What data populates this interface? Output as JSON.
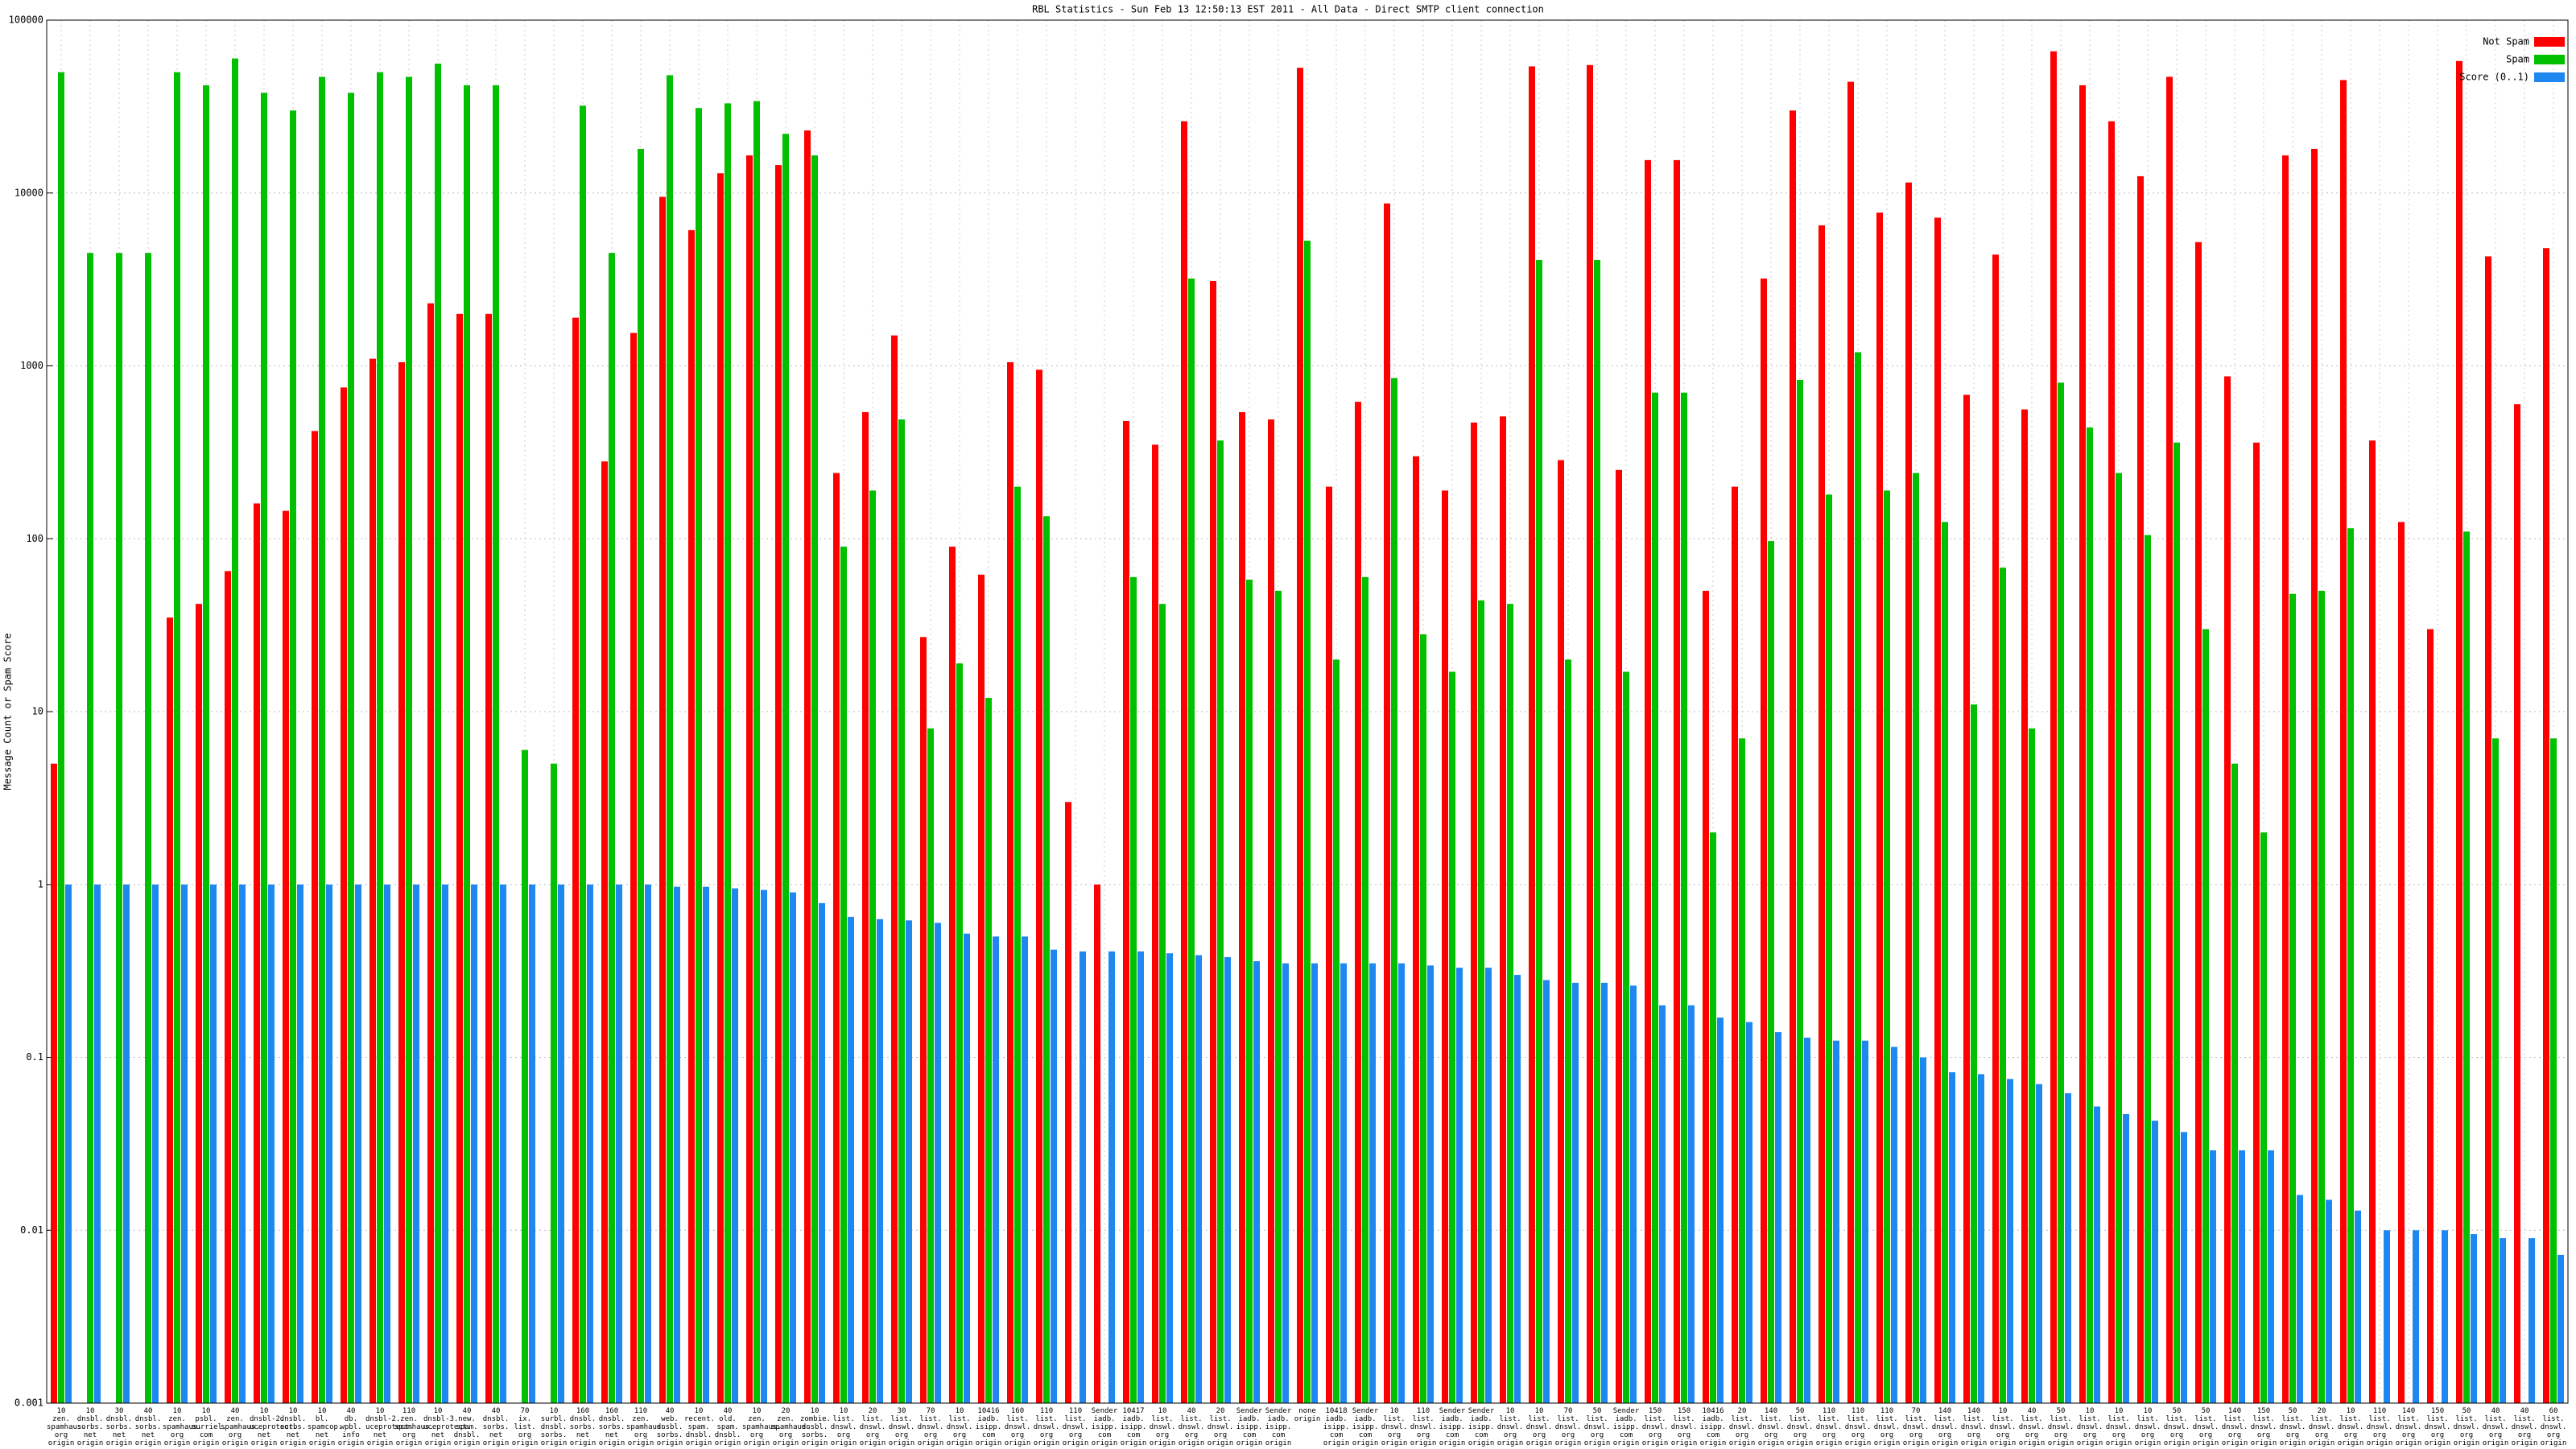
{
  "chart_data": {
    "type": "bar",
    "title": "RBL Statistics - Sun Feb 13 12:50:13 EST 2011 - All Data - Direct SMTP client connection",
    "y_label": "Message Count or Spam Score",
    "log_y": true,
    "grid": true,
    "legend": "upper right",
    "ylim": [
      0.001,
      100000
    ],
    "yticks": [
      0.001,
      0.01,
      0.1,
      1,
      10,
      100,
      1000,
      10000,
      100000
    ],
    "categories": [
      "10\nzen.\nspamhaus.\norg\norigin",
      "10\ndnsbl.\nsorbs.\nnet\norigin",
      "30\ndnsbl.\nsorbs.\nnet\norigin",
      "40\ndnsbl.\nsorbs.\nnet\norigin",
      "10\nzen.\nspamhaus.\norg\norigin",
      "10\npsbl.\nsurriel.\ncom\norigin",
      "40\nzen.\nspamhaus.\norg\norigin",
      "10\ndnsbl-2.\nuceprotect.\nnet\norigin",
      "10\ndnsbl.\nsorbs.\nnet\norigin",
      "10\nbl.\nspamcop.\nnet\norigin",
      "40\ndb.\nwpbl.\ninfo\norigin",
      "10\ndnsbl-2.\nuceprotect.\nnet\norigin",
      "110\nzen.\nspamhaus.\norg\norigin",
      "10\ndnsbl-3.\nuceprotect.\nnet\norigin",
      "40\nnew.\nspam.\ndnsbl.\norigin",
      "40\ndnsbl.\nsorbs.\nnet\norigin",
      "70\nix.\nlist.\norg\norigin",
      "10\nsurbl.\ndnsbl.\nsorbs.\norigin",
      "160\ndnsbl.\nsorbs.\nnet\norigin",
      "160\ndnsbl.\nsorbs.\nnet\norigin",
      "110\nzen.\nspamhaus.\norg\norigin",
      "40\nweb.\ndnsbl.\nsorbs.\norigin",
      "10\nrecent.\nspam.\ndnsbl.\norigin",
      "40\nold.\nspam.\ndnsbl.\norigin",
      "10\nzen.\nspamhaus.\norg\norigin",
      "20\nzen.\nspamhaus.\norg\norigin",
      "10\nzombie.\ndnsbl.\nsorbs.\norigin",
      "10\nlist.\ndnswl.\norg\norigin",
      "20\nlist.\ndnswl.\norg\norigin",
      "30\nlist.\ndnswl.\norg\norigin",
      "70\nlist.\ndnswl.\norg\norigin",
      "10\nlist.\ndnswl.\norg\norigin",
      "10416\niadb.\nisipp.\ncom\norigin",
      "160\nlist.\ndnswl.\norg\norigin",
      "110\nlist.\ndnswl.\norg\norigin",
      "110\nlist.\ndnswl.\norg\norigin",
      "Sender\niadb.\nisipp.\ncom\norigin",
      "10417\niadb.\nisipp.\ncom\norigin",
      "10\nlist.\ndnswl.\norg\norigin",
      "40\nlist.\ndnswl.\norg\norigin",
      "20\nlist.\ndnswl.\norg\norigin",
      "Sender\niadb.\nisipp.\ncom\norigin",
      "Sender\niadb.\nisipp.\ncom\norigin",
      "none\norigin",
      "10418\niadb.\nisipp.\ncom\norigin",
      "Sender\niadb.\nisipp.\ncom\norigin",
      "10\nlist.\ndnswl.\norg\norigin",
      "110\nlist.\ndnswl.\norg\norigin",
      "Sender\niadb.\nisipp.\ncom\norigin",
      "Sender\niadb.\nisipp.\ncom\norigin",
      "10\nlist.\ndnswl.\norg\norigin",
      "10\nlist.\ndnswl.\norg\norigin",
      "70\nlist.\ndnswl.\norg\norigin",
      "50\nlist.\ndnswl.\norg\norigin",
      "Sender\niadb.\nisipp.\ncom\norigin",
      "150\nlist.\ndnswl.\norg\norigin",
      "150\nlist.\ndnswl.\norg\norigin",
      "10416\niadb.\nisipp.\ncom\norigin",
      "20\nlist.\ndnswl.\norg\norigin",
      "140\nlist.\ndnswl.\norg\norigin",
      "50\nlist.\ndnswl.\norg\norigin",
      "110\nlist.\ndnswl.\norg\norigin",
      "110\nlist.\ndnswl.\norg\norigin",
      "110\nlist.\ndnswl.\norg\norigin",
      "70\nlist.\ndnswl.\norg\norigin",
      "140\nlist.\ndnswl.\norg\norigin",
      "140\nlist.\ndnswl.\norg\norigin",
      "10\nlist.\ndnswl.\norg\norigin",
      "40\nlist.\ndnswl.\norg\norigin",
      "50\nlist.\ndnswl.\norg\norigin",
      "10\nlist.\ndnswl.\norg\norigin",
      "10\nlist.\ndnswl.\norg\norigin",
      "10\nlist.\ndnswl.\norg\norigin",
      "50\nlist.\ndnswl.\norg\norigin",
      "50\nlist.\ndnswl.\norg\norigin",
      "140\nlist.\ndnswl.\norg\norigin",
      "150\nlist.\ndnswl.\norg\norigin",
      "50\nlist.\ndnswl.\norg\norigin",
      "20\nlist.\ndnswl.\norg\norigin",
      "10\nlist.\ndnswl.\norg\norigin",
      "110\nlist.\ndnswl.\norg\norigin",
      "140\nlist.\ndnswl.\norg\norigin",
      "150\nlist.\ndnswl.\norg\norigin",
      "50\nlist.\ndnswl.\norg\norigin",
      "40\nlist.\ndnswl.\norg\norigin",
      "40\nlist.\ndnswl.\norg\norigin",
      "60\nlist.\ndnswl.\norg\norigin"
    ],
    "series": [
      {
        "name": "Not Spam",
        "color": "#ff0000",
        "values": [
          5,
          null,
          null,
          null,
          35,
          42,
          65,
          160,
          145,
          420,
          750,
          1100,
          1050,
          2300,
          2000,
          2000,
          null,
          null,
          1900,
          280,
          1550,
          9500,
          6100,
          13000,
          16500,
          14500,
          23000,
          240,
          540,
          1500,
          27,
          90,
          62,
          1050,
          950,
          3,
          1,
          480,
          350,
          26000,
          3100,
          540,
          490,
          53000,
          200,
          620,
          8700,
          300,
          190,
          470,
          510,
          54000,
          285,
          55000,
          250,
          15500,
          15500,
          50,
          200,
          3200,
          30000,
          6500,
          44000,
          7700,
          11500,
          7200,
          680,
          4400,
          560,
          66000,
          42000,
          26000,
          12500,
          47000,
          5200,
          870,
          360,
          16500,
          18000,
          45000,
          370,
          125,
          30,
          58000,
          4300,
          600,
          4800
        ]
      },
      {
        "name": "Spam",
        "color": "#00c000",
        "values": [
          50000,
          4500,
          4500,
          4500,
          50000,
          42000,
          60000,
          38000,
          30000,
          47000,
          38000,
          50000,
          47000,
          56000,
          42000,
          42000,
          6,
          5,
          32000,
          4500,
          18000,
          48000,
          31000,
          33000,
          34000,
          22000,
          16500,
          90,
          190,
          490,
          8,
          19,
          12,
          200,
          135,
          null,
          null,
          60,
          42,
          3200,
          370,
          58,
          50,
          5300,
          20,
          60,
          850,
          28,
          17,
          44,
          42,
          4100,
          20,
          4100,
          17,
          700,
          700,
          2,
          7,
          97,
          830,
          180,
          1200,
          190,
          240,
          125,
          11,
          68,
          8,
          800,
          440,
          240,
          105,
          360,
          30,
          5,
          2,
          48,
          50,
          115,
          null,
          null,
          null,
          110,
          7,
          null,
          7
        ]
      },
      {
        "name": "Score (0..1)",
        "color": "#1e88f0",
        "values": [
          1,
          1,
          1,
          1,
          1,
          1,
          1,
          1,
          1,
          1,
          1,
          1,
          1,
          1,
          1,
          1,
          1,
          1,
          1,
          1,
          1,
          0.97,
          0.97,
          0.95,
          0.93,
          0.9,
          0.78,
          0.65,
          0.63,
          0.62,
          0.6,
          0.52,
          0.5,
          0.5,
          0.42,
          0.41,
          0.41,
          0.41,
          0.4,
          0.39,
          0.38,
          0.36,
          0.35,
          0.35,
          0.35,
          0.35,
          0.35,
          0.34,
          0.33,
          0.33,
          0.3,
          0.28,
          0.27,
          0.27,
          0.26,
          0.2,
          0.2,
          0.17,
          0.16,
          0.14,
          0.13,
          0.125,
          0.125,
          0.115,
          0.1,
          0.082,
          0.08,
          0.075,
          0.07,
          0.062,
          0.052,
          0.047,
          0.043,
          0.037,
          0.029,
          0.029,
          0.029,
          0.016,
          0.015,
          0.013,
          0.01,
          0.01,
          0.01,
          0.0095,
          0.009,
          0.009,
          0.0072
        ]
      }
    ]
  }
}
